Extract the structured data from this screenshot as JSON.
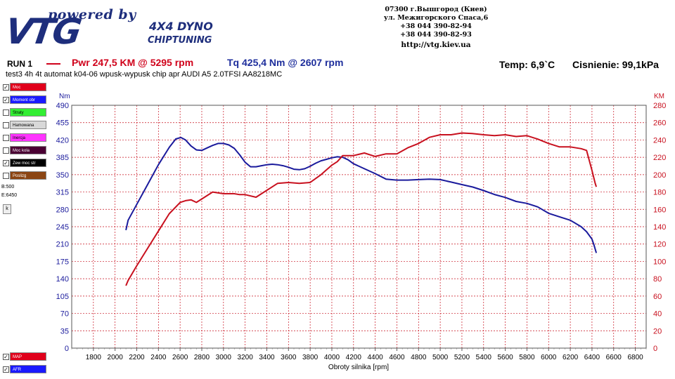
{
  "header": {
    "logo_powered": "powered by",
    "logo_brand": "VTG",
    "logo_dyno": "4X4 DYNO",
    "logo_chiptuning": "CHIPTUNING",
    "address_lines": [
      "07300 г.Вышгород (Киев)",
      "ул. Межигорского Спаса,6",
      "+38 044 390-82-94",
      "+38 044 390-82-93"
    ],
    "url": "http://vtg.kiev.ua"
  },
  "run": {
    "label": "RUN 1",
    "pwr": "Pwr  247,5 KM @ 5295 rpm",
    "tq": "Tq 425,4 Nm @ 2607 rpm",
    "temp": "Temp: 6,9`C",
    "pressure": "Cisnienie: 99,1kPa",
    "description": "test3   4h 4t  automat k04-06 wpusk-wypusk  chip apr AUDI A5 2.0TFSI AA8218MC"
  },
  "legend": {
    "items": [
      {
        "label": "Moc",
        "color": "#e0001b",
        "checked": true
      },
      {
        "label": "Moment obr",
        "color": "#1a1aff",
        "checked": true
      },
      {
        "label": "Straty",
        "color": "#33ee33",
        "checked": false
      },
      {
        "label": "Hamowana",
        "color": "#d8d8d8",
        "checked": false
      },
      {
        "label": "Inercja",
        "color": "#ff33ff",
        "checked": false
      },
      {
        "label": "Moc kola",
        "color": "#4a0033",
        "checked": false
      },
      {
        "label": "Zew moc str",
        "color": "#000000",
        "checked": true
      },
      {
        "label": "Poslizg",
        "color": "#8b4513",
        "checked": false
      }
    ],
    "range_b": "B:500",
    "range_e": "E:6450",
    "range_button": "k",
    "bottom": [
      {
        "label": "MAP",
        "color": "#e0001b",
        "checked": true
      },
      {
        "label": "AFR",
        "color": "#1a1aff",
        "checked": true
      }
    ]
  },
  "chart_data": {
    "type": "line",
    "xlabel": "Obroty silnika [rpm]",
    "ylabel_left": "Nm",
    "ylabel_right": "KM",
    "xlim": [
      1600,
      6900
    ],
    "ylim_left": [
      0,
      490
    ],
    "ylim_right": [
      0,
      280
    ],
    "x_ticks": [
      1800,
      2000,
      2200,
      2400,
      2600,
      2800,
      3000,
      3200,
      3400,
      3600,
      3800,
      4000,
      4200,
      4400,
      4600,
      4800,
      5000,
      5200,
      5400,
      5600,
      5800,
      6000,
      6200,
      6400,
      6600,
      6800
    ],
    "y_ticks_left": [
      0,
      35,
      70,
      105,
      140,
      175,
      210,
      245,
      280,
      315,
      350,
      385,
      420,
      455,
      490
    ],
    "y_ticks_right": [
      0,
      20,
      40,
      60,
      80,
      100,
      120,
      140,
      160,
      180,
      200,
      220,
      240,
      260,
      280
    ],
    "grid": true,
    "colors": {
      "torque": "#1a1a9c",
      "power": "#c8101e",
      "axis_left": "#1a1a9c",
      "axis_right": "#c8101e"
    },
    "series": [
      {
        "name": "Tq",
        "axis": "left",
        "x": [
          2100,
          2120,
          2200,
          2300,
          2400,
          2500,
          2560,
          2607,
          2650,
          2700,
          2750,
          2800,
          2850,
          2900,
          2950,
          3000,
          3050,
          3100,
          3150,
          3200,
          3250,
          3300,
          3350,
          3400,
          3450,
          3500,
          3550,
          3600,
          3650,
          3700,
          3750,
          3800,
          3850,
          3900,
          3950,
          4000,
          4050,
          4100,
          4150,
          4200,
          4300,
          4400,
          4500,
          4600,
          4700,
          4800,
          4900,
          5000,
          5100,
          5200,
          5300,
          5400,
          5500,
          5600,
          5700,
          5800,
          5900,
          6000,
          6100,
          6200,
          6300,
          6350,
          6400,
          6420,
          6440
        ],
        "values": [
          238,
          258,
          290,
          330,
          370,
          405,
          422,
          425,
          420,
          408,
          400,
          399,
          404,
          409,
          413,
          413,
          410,
          403,
          390,
          375,
          366,
          366,
          368,
          370,
          371,
          370,
          368,
          365,
          361,
          360,
          362,
          367,
          373,
          378,
          381,
          384,
          386,
          385,
          380,
          372,
          362,
          352,
          341,
          339,
          339,
          340,
          341,
          340,
          335,
          330,
          325,
          318,
          310,
          304,
          296,
          292,
          285,
          272,
          265,
          258,
          245,
          235,
          220,
          207,
          192
        ]
      },
      {
        "name": "Pwr",
        "axis": "right",
        "x": [
          2100,
          2120,
          2200,
          2300,
          2400,
          2500,
          2600,
          2650,
          2700,
          2750,
          2800,
          2900,
          3000,
          3100,
          3150,
          3200,
          3300,
          3400,
          3500,
          3600,
          3700,
          3800,
          3900,
          4000,
          4050,
          4100,
          4200,
          4300,
          4400,
          4500,
          4600,
          4700,
          4800,
          4900,
          5000,
          5100,
          5200,
          5295,
          5400,
          5500,
          5600,
          5700,
          5800,
          5900,
          6000,
          6100,
          6200,
          6300,
          6350,
          6400,
          6430,
          6440
        ],
        "values": [
          72,
          78,
          95,
          115,
          135,
          155,
          168,
          170,
          171,
          168,
          172,
          180,
          178,
          178,
          177,
          177,
          174,
          182,
          190,
          191,
          190,
          191,
          200,
          211,
          215,
          222,
          222,
          225,
          221,
          224,
          224,
          231,
          236,
          243,
          246,
          246,
          248,
          247.5,
          246,
          245,
          246,
          244,
          245,
          241,
          236,
          232,
          232,
          230,
          228,
          205,
          190,
          186
        ]
      }
    ]
  }
}
